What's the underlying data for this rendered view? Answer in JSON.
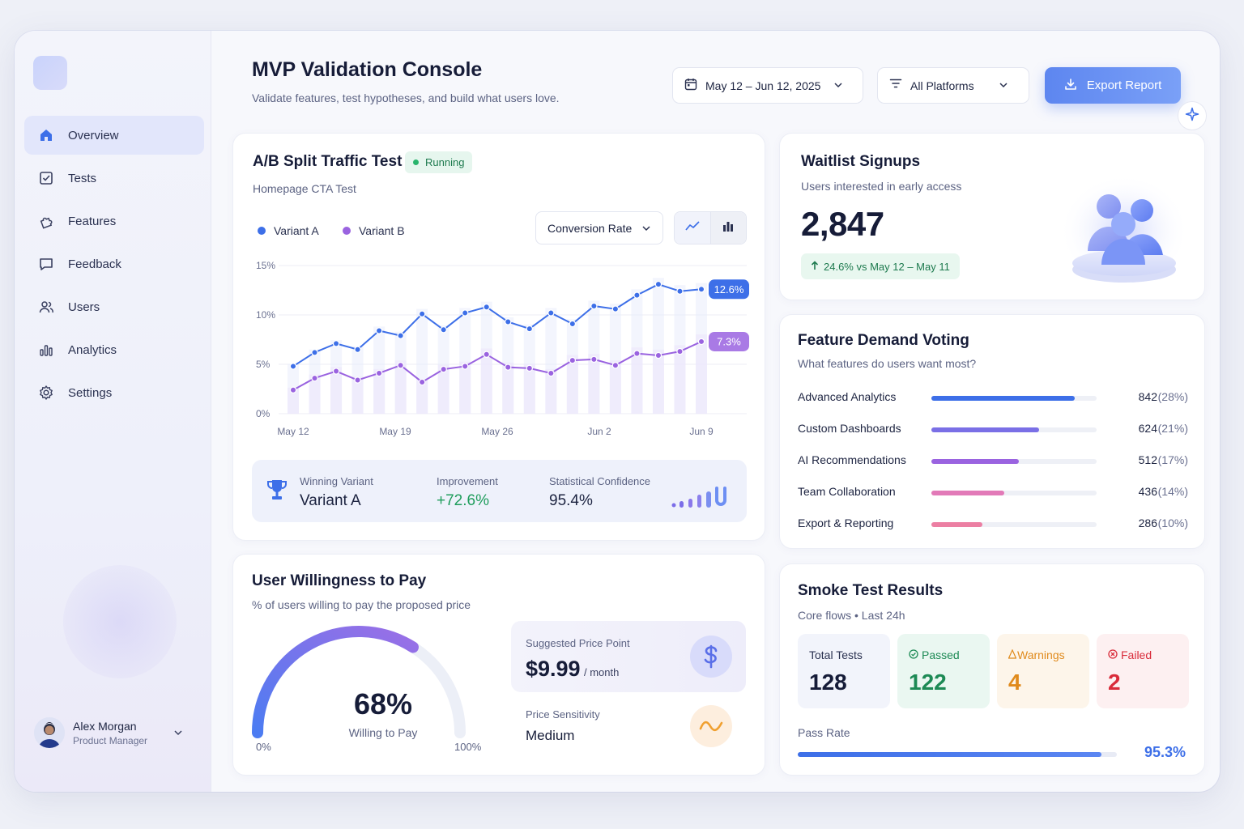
{
  "header": {
    "title": "MVP Validation Console",
    "subtitle": "Validate features, test hypotheses, and build what users love.",
    "date_range": "May 12 – Jun 12, 2025",
    "platform_filter": "All Platforms",
    "export_label": "Export Report"
  },
  "sidebar": {
    "items": [
      {
        "label": "Overview",
        "icon": "home-icon",
        "active": true
      },
      {
        "label": "Tests",
        "icon": "checkbox-icon"
      },
      {
        "label": "Features",
        "icon": "puzzle-icon"
      },
      {
        "label": "Feedback",
        "icon": "chat-icon"
      },
      {
        "label": "Users",
        "icon": "users-icon"
      },
      {
        "label": "Analytics",
        "icon": "bar-chart-icon"
      },
      {
        "label": "Settings",
        "icon": "gear-icon"
      }
    ],
    "user": {
      "name": "Alex Morgan",
      "role": "Product Manager"
    }
  },
  "ab_test": {
    "title": "A/B Split Traffic Test",
    "status": "Running",
    "subtitle": "Homepage CTA Test",
    "metric_select": "Conversion Rate",
    "winner_label": "Winning Variant",
    "winner_value": "Variant A",
    "improvement_label": "Improvement",
    "improvement_value": "+72.6%",
    "confidence_label": "Statistical Confidence",
    "confidence_value": "95.4%"
  },
  "chart_data": {
    "type": "line",
    "x_ticks": [
      "May 12",
      "May 19",
      "May 26",
      "Jun 2",
      "Jun 9"
    ],
    "y_ticks": [
      "15%",
      "10%",
      "5%",
      "0%"
    ],
    "ylim": [
      0,
      15
    ],
    "series": [
      {
        "name": "Variant A",
        "color": "#3d6fe8",
        "values": [
          4.8,
          6.2,
          7.1,
          6.5,
          8.4,
          7.9,
          10.1,
          8.5,
          10.2,
          10.8,
          9.3,
          8.6,
          10.2,
          9.1,
          10.9,
          10.6,
          12.0,
          13.1,
          12.4,
          12.6
        ],
        "end_label": "12.6%"
      },
      {
        "name": "Variant B",
        "color": "#9a63e0",
        "values": [
          2.4,
          3.6,
          4.3,
          3.4,
          4.1,
          4.9,
          3.2,
          4.5,
          4.8,
          6.0,
          4.7,
          4.6,
          4.1,
          5.4,
          5.5,
          4.9,
          6.1,
          5.9,
          6.3,
          7.3
        ],
        "end_label": "7.3%"
      }
    ]
  },
  "waitlist": {
    "title": "Waitlist Signups",
    "subtitle": "Users interested in early access",
    "count": "2,847",
    "trend": "24.6% vs May 12 – May 11"
  },
  "voting": {
    "title": "Feature Demand Voting",
    "subtitle": "What features do users want most?",
    "items": [
      {
        "label": "Advanced Analytics",
        "count": "842",
        "pct": "(28%)",
        "share": 0.87,
        "color": "#3d6fe8"
      },
      {
        "label": "Custom Dashboards",
        "count": "624",
        "pct": "(21%)",
        "share": 0.65,
        "color": "#7a6fe6"
      },
      {
        "label": "AI Recommendations",
        "count": "512",
        "pct": "(17%)",
        "share": 0.53,
        "color": "#9a63e0"
      },
      {
        "label": "Team Collaboration",
        "count": "436",
        "pct": "(14%)",
        "share": 0.44,
        "color": "#e27ab8"
      },
      {
        "label": "Export & Reporting",
        "count": "286",
        "pct": "(10%)",
        "share": 0.31,
        "color": "#ec7fa3"
      }
    ]
  },
  "willingness": {
    "title": "User Willingness to Pay",
    "subtitle": "% of users willing to pay the proposed price",
    "value": "68%",
    "value_fraction": 0.68,
    "value_label": "Willing to Pay",
    "min_label": "0%",
    "max_label": "100%",
    "price_label": "Suggested Price Point",
    "price": "$9.99",
    "price_unit": "/ month",
    "sensitivity_label": "Price Sensitivity",
    "sensitivity_value": "Medium"
  },
  "smoke": {
    "title": "Smoke Test Results",
    "subtitle": "Core flows • Last 24h",
    "tiles": [
      {
        "label": "Total Tests",
        "value": "128"
      },
      {
        "label": "Passed",
        "value": "122"
      },
      {
        "label": "Warnings",
        "value": "4"
      },
      {
        "label": "Failed",
        "value": "2"
      }
    ],
    "pass_rate_label": "Pass Rate",
    "pass_rate": "95.3%",
    "pass_fraction": 0.953
  }
}
